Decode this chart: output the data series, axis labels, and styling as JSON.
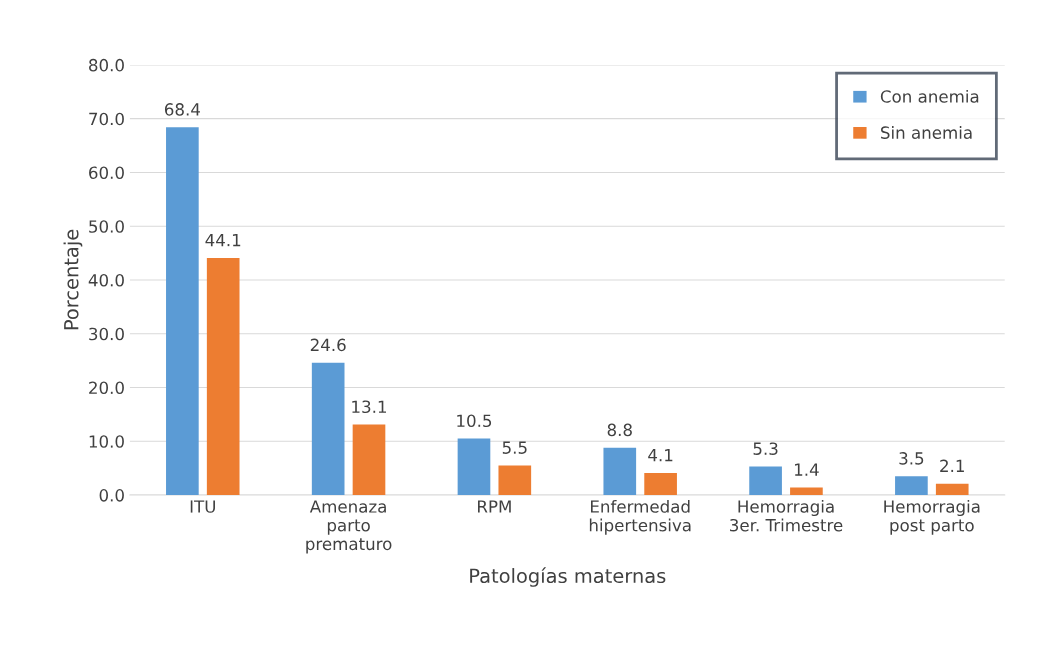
{
  "chart_data": {
    "type": "bar",
    "xlabel": "Patologías maternas",
    "ylabel": "Porcentaje",
    "categories": [
      "ITU",
      "Amenaza\nparto\nprematuro",
      "RPM",
      "Enfermedad\nhipertensiva",
      "Hemorragia\n3er. Trimestre",
      "Hemorragia\npost parto"
    ],
    "series": [
      {
        "name": "Con anemia",
        "color": "#5b9bd5",
        "values": [
          68.4,
          24.6,
          10.5,
          8.8,
          5.3,
          3.5
        ]
      },
      {
        "name": "Sin anemia",
        "color": "#ed7d31",
        "values": [
          44.1,
          13.1,
          5.5,
          4.1,
          1.4,
          2.1
        ]
      }
    ],
    "ylim": [
      0,
      80
    ],
    "yticks": [
      {
        "value": 0,
        "label": "0.0"
      },
      {
        "value": 10,
        "label": "10.0"
      },
      {
        "value": 20,
        "label": "20.0"
      },
      {
        "value": 30,
        "label": "30.0"
      },
      {
        "value": 40,
        "label": "40.0"
      },
      {
        "value": 50,
        "label": "50.0"
      },
      {
        "value": 60,
        "label": "60.0"
      },
      {
        "value": 70,
        "label": "70.0"
      },
      {
        "value": 80,
        "label": "80.0"
      }
    ],
    "grid": "y",
    "legend": "top right",
    "data_labels": true
  }
}
